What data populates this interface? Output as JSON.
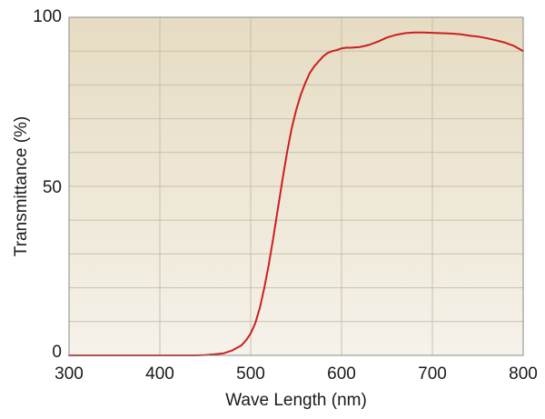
{
  "chart_data": {
    "type": "line",
    "title": "",
    "xlabel": "Wave Length (nm)",
    "ylabel": "Transmittance (%)",
    "xlim": [
      300,
      800
    ],
    "ylim": [
      0,
      100
    ],
    "x_ticks": [
      300,
      400,
      500,
      600,
      700,
      800
    ],
    "x_tick_labels": [
      "300",
      "400",
      "500",
      "600",
      "700",
      "800"
    ],
    "y_ticks": [
      0,
      50,
      100
    ],
    "y_tick_labels": [
      "0",
      "50",
      "100"
    ],
    "grid": true,
    "x_grid_step": 100,
    "y_grid_step": 10,
    "legend": "none",
    "colors": {
      "line": "#cc1f1f",
      "grid": "#c8bfae",
      "frame": "#8a8a8a",
      "background_top": "#e6dcc2",
      "background_bottom": "#f6f2ea"
    },
    "series": [
      {
        "x": [
          300,
          350,
          400,
          440,
          450,
          460,
          470,
          480,
          490,
          495,
          500,
          505,
          510,
          515,
          520,
          525,
          530,
          535,
          540,
          545,
          550,
          555,
          560,
          565,
          570,
          575,
          580,
          585,
          590,
          595,
          600,
          605,
          610,
          620,
          630,
          640,
          650,
          660,
          670,
          680,
          690,
          700,
          710,
          720,
          730,
          740,
          750,
          760,
          770,
          780,
          790,
          800
        ],
        "y": [
          0,
          0,
          0,
          0,
          0.1,
          0.3,
          0.6,
          1.5,
          3,
          4.5,
          6.5,
          9.5,
          14,
          20,
          27,
          35,
          43.5,
          52,
          60,
          67,
          72.5,
          77,
          80.5,
          83.5,
          85.5,
          87,
          88.5,
          89.5,
          90,
          90.3,
          90.8,
          91,
          91,
          91.2,
          91.8,
          92.8,
          94,
          94.8,
          95.3,
          95.5,
          95.5,
          95.4,
          95.3,
          95.2,
          95,
          94.6,
          94.3,
          93.8,
          93.2,
          92.5,
          91.5,
          90
        ]
      }
    ]
  }
}
